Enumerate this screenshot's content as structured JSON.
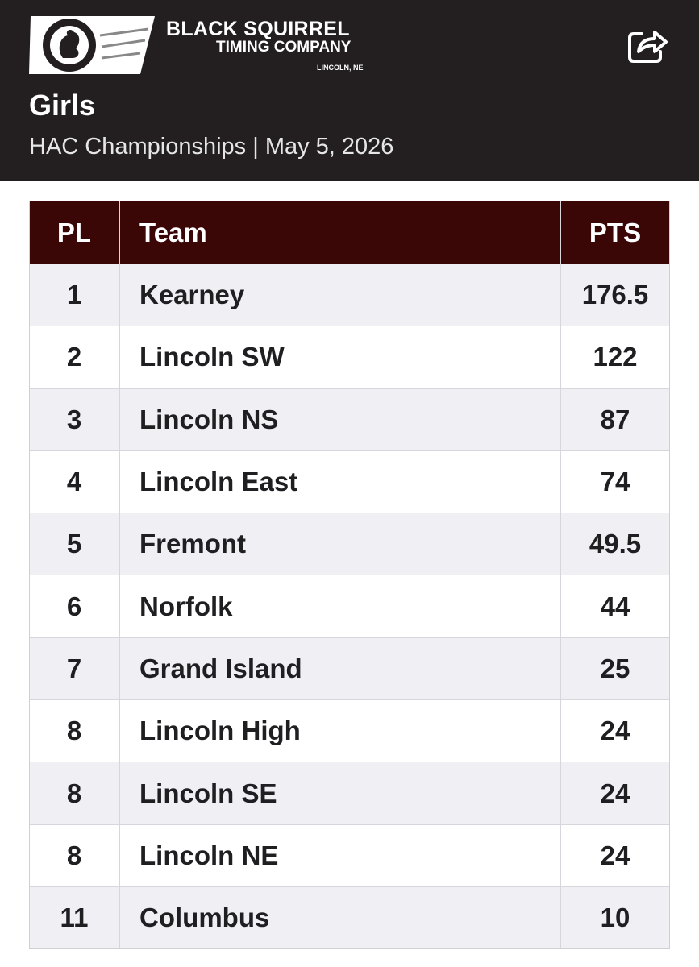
{
  "header": {
    "brand": "BLACK SQUIRREL",
    "brand_line2": "TIMING COMPANY",
    "location": "LINCOLN, NE",
    "title": "Girls",
    "subtitle": "HAC Championships | May 5, 2026"
  },
  "table": {
    "columns": [
      "PL",
      "Team",
      "PTS"
    ],
    "rows": [
      [
        "1",
        "Kearney",
        "176.5"
      ],
      [
        "2",
        "Lincoln SW",
        "122"
      ],
      [
        "3",
        "Lincoln NS",
        "87"
      ],
      [
        "4",
        "Lincoln East",
        "74"
      ],
      [
        "5",
        "Fremont",
        "49.5"
      ],
      [
        "6",
        "Norfolk",
        "44"
      ],
      [
        "7",
        "Grand Island",
        "25"
      ],
      [
        "8",
        "Lincoln High",
        "24"
      ],
      [
        "8",
        "Lincoln SE",
        "24"
      ],
      [
        "8",
        "Lincoln NE",
        "24"
      ],
      [
        "11",
        "Columbus",
        "10"
      ]
    ]
  }
}
